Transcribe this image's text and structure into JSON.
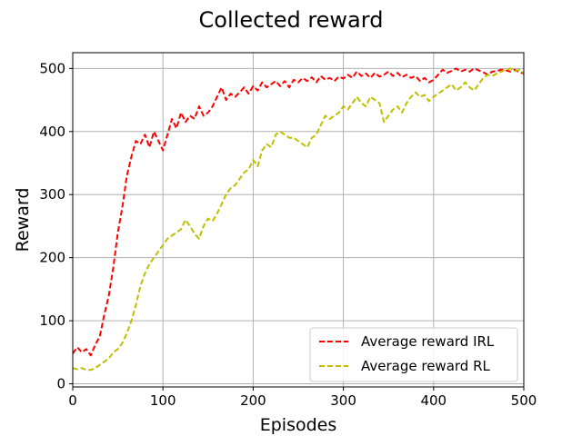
{
  "chart_data": {
    "type": "line",
    "title": "Collected reward",
    "xlabel": "Episodes",
    "ylabel": "Reward",
    "xlim": [
      0,
      500
    ],
    "ylim": [
      -5,
      525
    ],
    "x_ticks": [
      0,
      100,
      200,
      300,
      400,
      500
    ],
    "y_ticks": [
      0,
      100,
      200,
      300,
      400,
      500
    ],
    "grid": true,
    "legend_position": "bottom-right",
    "series": [
      {
        "name": "Average reward IRL",
        "color": "#ff0000",
        "line_style": "dashed",
        "points": [
          [
            0,
            48
          ],
          [
            5,
            58
          ],
          [
            10,
            50
          ],
          [
            15,
            55
          ],
          [
            20,
            45
          ],
          [
            25,
            62
          ],
          [
            30,
            75
          ],
          [
            35,
            110
          ],
          [
            40,
            140
          ],
          [
            45,
            185
          ],
          [
            50,
            240
          ],
          [
            55,
            280
          ],
          [
            60,
            330
          ],
          [
            65,
            360
          ],
          [
            70,
            385
          ],
          [
            75,
            380
          ],
          [
            80,
            395
          ],
          [
            85,
            375
          ],
          [
            90,
            400
          ],
          [
            95,
            385
          ],
          [
            100,
            370
          ],
          [
            105,
            395
          ],
          [
            110,
            420
          ],
          [
            115,
            405
          ],
          [
            120,
            430
          ],
          [
            125,
            415
          ],
          [
            130,
            425
          ],
          [
            135,
            420
          ],
          [
            140,
            440
          ],
          [
            145,
            425
          ],
          [
            150,
            430
          ],
          [
            155,
            440
          ],
          [
            160,
            455
          ],
          [
            165,
            470
          ],
          [
            170,
            450
          ],
          [
            175,
            460
          ],
          [
            180,
            455
          ],
          [
            185,
            462
          ],
          [
            190,
            470
          ],
          [
            195,
            460
          ],
          [
            200,
            472
          ],
          [
            205,
            465
          ],
          [
            210,
            478
          ],
          [
            215,
            470
          ],
          [
            220,
            475
          ],
          [
            225,
            480
          ],
          [
            230,
            472
          ],
          [
            235,
            480
          ],
          [
            240,
            470
          ],
          [
            245,
            482
          ],
          [
            250,
            478
          ],
          [
            255,
            485
          ],
          [
            260,
            480
          ],
          [
            265,
            486
          ],
          [
            270,
            478
          ],
          [
            275,
            488
          ],
          [
            280,
            482
          ],
          [
            285,
            485
          ],
          [
            290,
            480
          ],
          [
            295,
            487
          ],
          [
            300,
            484
          ],
          [
            305,
            490
          ],
          [
            310,
            485
          ],
          [
            315,
            495
          ],
          [
            320,
            488
          ],
          [
            325,
            492
          ],
          [
            330,
            485
          ],
          [
            335,
            493
          ],
          [
            340,
            487
          ],
          [
            345,
            490
          ],
          [
            350,
            495
          ],
          [
            355,
            488
          ],
          [
            360,
            493
          ],
          [
            365,
            486
          ],
          [
            370,
            490
          ],
          [
            375,
            485
          ],
          [
            380,
            488
          ],
          [
            385,
            480
          ],
          [
            390,
            485
          ],
          [
            395,
            478
          ],
          [
            400,
            482
          ],
          [
            405,
            490
          ],
          [
            410,
            498
          ],
          [
            415,
            493
          ],
          [
            420,
            496
          ],
          [
            425,
            500
          ],
          [
            430,
            495
          ],
          [
            435,
            498
          ],
          [
            440,
            495
          ],
          [
            445,
            500
          ],
          [
            450,
            497
          ],
          [
            455,
            494
          ],
          [
            460,
            490
          ],
          [
            465,
            495
          ],
          [
            470,
            496
          ],
          [
            475,
            498
          ],
          [
            480,
            497
          ],
          [
            485,
            495
          ],
          [
            490,
            498
          ],
          [
            495,
            494
          ],
          [
            500,
            492
          ]
        ]
      },
      {
        "name": "Average reward RL",
        "color": "#bfbf00",
        "line_style": "dashed",
        "points": [
          [
            0,
            25
          ],
          [
            5,
            23
          ],
          [
            10,
            25
          ],
          [
            15,
            22
          ],
          [
            20,
            22
          ],
          [
            25,
            25
          ],
          [
            30,
            30
          ],
          [
            35,
            35
          ],
          [
            40,
            40
          ],
          [
            45,
            50
          ],
          [
            50,
            55
          ],
          [
            55,
            65
          ],
          [
            60,
            80
          ],
          [
            65,
            100
          ],
          [
            70,
            125
          ],
          [
            75,
            155
          ],
          [
            80,
            175
          ],
          [
            85,
            190
          ],
          [
            90,
            200
          ],
          [
            95,
            210
          ],
          [
            100,
            220
          ],
          [
            105,
            230
          ],
          [
            110,
            235
          ],
          [
            115,
            240
          ],
          [
            120,
            245
          ],
          [
            125,
            260
          ],
          [
            130,
            250
          ],
          [
            135,
            238
          ],
          [
            140,
            230
          ],
          [
            145,
            250
          ],
          [
            150,
            262
          ],
          [
            155,
            258
          ],
          [
            160,
            270
          ],
          [
            165,
            285
          ],
          [
            170,
            300
          ],
          [
            175,
            310
          ],
          [
            180,
            315
          ],
          [
            185,
            325
          ],
          [
            190,
            335
          ],
          [
            195,
            340
          ],
          [
            200,
            355
          ],
          [
            205,
            345
          ],
          [
            210,
            370
          ],
          [
            215,
            380
          ],
          [
            220,
            375
          ],
          [
            225,
            395
          ],
          [
            230,
            400
          ],
          [
            235,
            395
          ],
          [
            240,
            390
          ],
          [
            245,
            390
          ],
          [
            250,
            385
          ],
          [
            255,
            380
          ],
          [
            260,
            375
          ],
          [
            265,
            390
          ],
          [
            270,
            395
          ],
          [
            275,
            410
          ],
          [
            280,
            425
          ],
          [
            285,
            420
          ],
          [
            290,
            425
          ],
          [
            295,
            430
          ],
          [
            300,
            440
          ],
          [
            305,
            435
          ],
          [
            310,
            445
          ],
          [
            315,
            455
          ],
          [
            320,
            445
          ],
          [
            325,
            440
          ],
          [
            330,
            455
          ],
          [
            335,
            450
          ],
          [
            340,
            445
          ],
          [
            345,
            415
          ],
          [
            350,
            425
          ],
          [
            355,
            435
          ],
          [
            360,
            440
          ],
          [
            365,
            430
          ],
          [
            370,
            445
          ],
          [
            375,
            455
          ],
          [
            380,
            462
          ],
          [
            385,
            455
          ],
          [
            390,
            458
          ],
          [
            395,
            448
          ],
          [
            400,
            455
          ],
          [
            405,
            460
          ],
          [
            410,
            465
          ],
          [
            415,
            470
          ],
          [
            420,
            475
          ],
          [
            425,
            465
          ],
          [
            430,
            470
          ],
          [
            435,
            478
          ],
          [
            440,
            470
          ],
          [
            445,
            465
          ],
          [
            450,
            475
          ],
          [
            455,
            485
          ],
          [
            460,
            490
          ],
          [
            465,
            488
          ],
          [
            470,
            492
          ],
          [
            475,
            495
          ],
          [
            480,
            498
          ],
          [
            485,
            500
          ],
          [
            490,
            496
          ],
          [
            495,
            498
          ],
          [
            500,
            493
          ]
        ]
      }
    ]
  }
}
